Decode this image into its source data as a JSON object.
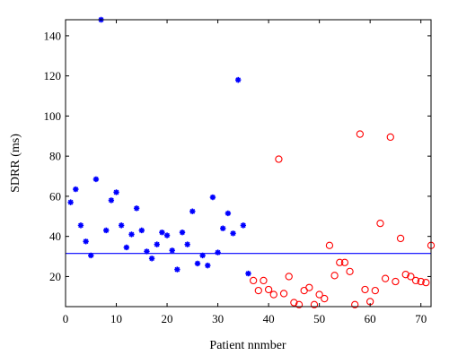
{
  "chart_data": {
    "type": "scatter",
    "title": "",
    "xlabel": "Patient nnmber",
    "ylabel": "SDRR (ms)",
    "xlim": [
      0,
      72
    ],
    "ylim": [
      5,
      148
    ],
    "grid": false,
    "legend": "none",
    "xticks": [
      0,
      10,
      20,
      30,
      40,
      50,
      60,
      70
    ],
    "yticks": [
      20,
      40,
      60,
      80,
      100,
      120,
      140
    ],
    "series": [
      {
        "marker": "star",
        "color": "#0000ff",
        "points": [
          [
            1,
            57
          ],
          [
            2,
            63.5
          ],
          [
            3,
            45.5
          ],
          [
            4,
            37.5
          ],
          [
            5,
            30.5
          ],
          [
            6,
            68.5
          ],
          [
            7,
            148
          ],
          [
            8,
            43
          ],
          [
            9,
            58
          ],
          [
            10,
            62
          ],
          [
            11,
            45.5
          ],
          [
            12,
            34.5
          ],
          [
            13,
            41
          ],
          [
            14,
            54
          ],
          [
            15,
            43
          ],
          [
            16,
            32.5
          ],
          [
            17,
            29
          ],
          [
            18,
            36
          ],
          [
            19,
            42
          ],
          [
            20,
            40.5
          ],
          [
            21,
            33
          ],
          [
            22,
            23.5
          ],
          [
            23,
            42
          ],
          [
            24,
            36
          ],
          [
            25,
            52.5
          ],
          [
            26,
            26.5
          ],
          [
            27,
            30.5
          ],
          [
            28,
            25.5
          ],
          [
            29,
            59.5
          ],
          [
            30,
            32
          ],
          [
            31,
            44
          ],
          [
            32,
            51.5
          ],
          [
            33,
            41.5
          ],
          [
            34,
            118
          ],
          [
            35,
            45.5
          ],
          [
            36,
            21.5
          ]
        ]
      },
      {
        "marker": "circle",
        "color": "#ff0000",
        "points": [
          [
            37,
            18
          ],
          [
            38,
            13
          ],
          [
            39,
            18
          ],
          [
            40,
            13.5
          ],
          [
            41,
            11
          ],
          [
            42,
            78.5
          ],
          [
            43,
            11.5
          ],
          [
            44,
            20
          ],
          [
            45,
            7
          ],
          [
            46,
            6
          ],
          [
            47,
            13
          ],
          [
            48,
            14.5
          ],
          [
            49,
            6
          ],
          [
            50,
            11
          ],
          [
            51,
            9
          ],
          [
            52,
            35.5
          ],
          [
            53,
            20.5
          ],
          [
            54,
            27
          ],
          [
            55,
            27
          ],
          [
            56,
            22.5
          ],
          [
            57,
            6
          ],
          [
            58,
            91
          ],
          [
            59,
            13.5
          ],
          [
            60,
            7.5
          ],
          [
            61,
            13
          ],
          [
            62,
            46.5
          ],
          [
            63,
            19
          ],
          [
            64,
            89.5
          ],
          [
            65,
            17.5
          ],
          [
            66,
            39
          ],
          [
            67,
            21
          ],
          [
            68,
            20
          ],
          [
            69,
            18
          ],
          [
            70,
            17.5
          ],
          [
            71,
            17
          ],
          [
            72,
            35.5
          ]
        ]
      }
    ],
    "reference_line": {
      "y": 31.5,
      "color": "#0000ff"
    }
  }
}
